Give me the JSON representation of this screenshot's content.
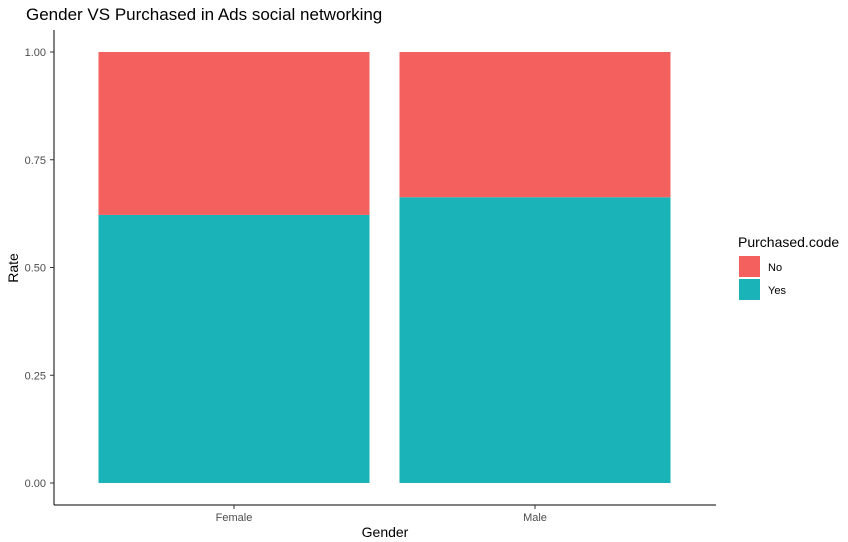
{
  "chart_data": {
    "type": "bar",
    "stacked": true,
    "title": "Gender VS Purchased in Ads social networking",
    "xlabel": "Gender",
    "ylabel": "Rate",
    "categories": [
      "Female",
      "Male"
    ],
    "series": [
      {
        "name": "Yes",
        "values": [
          0.622,
          0.663
        ],
        "color": "#19B3B8"
      },
      {
        "name": "No",
        "values": [
          0.378,
          0.337
        ],
        "color": "#F3605E"
      }
    ],
    "ylim": [
      0,
      1
    ],
    "yticks": [
      0.0,
      0.25,
      0.5,
      0.75,
      1.0
    ],
    "ytick_labels": [
      "0.00",
      "0.25",
      "0.50",
      "0.75",
      "1.00"
    ],
    "grid": false,
    "legend": {
      "title": "Purchased.code",
      "placement": "right",
      "entries": [
        {
          "label": "No",
          "color": "#F3605E"
        },
        {
          "label": "Yes",
          "color": "#19B3B8"
        }
      ]
    }
  }
}
